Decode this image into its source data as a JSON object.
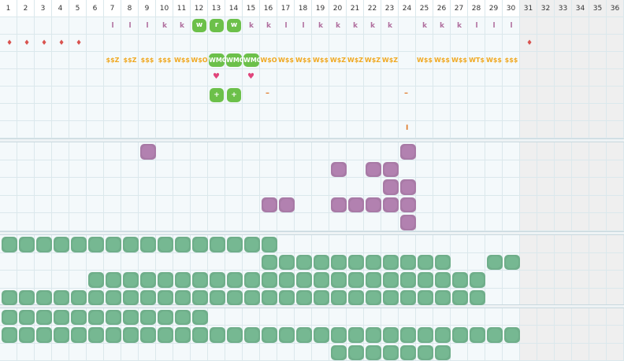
{
  "days": [
    "1",
    "2",
    "3",
    "4",
    "5",
    "6",
    "7",
    "8",
    "9",
    "10",
    "11",
    "12",
    "13",
    "14",
    "15",
    "16",
    "17",
    "18",
    "19",
    "20",
    "21",
    "22",
    "23",
    "24",
    "25",
    "26",
    "27",
    "28",
    "29",
    "30",
    "31",
    "32",
    "33",
    "34",
    "35",
    "36"
  ],
  "colors": {
    "grid_line": "#dbe8ec",
    "row_bg": "#f4f9fb",
    "future_shade": "#efefef",
    "purple_blob": "#a87aa6",
    "green_blob": "#6fae8a",
    "green_badge": "#6cc04a",
    "k_text": "#b06f9e",
    "dollar_text": "#f0a820",
    "drop": "#d9534f",
    "heart": "#e0457b",
    "dash": "#e07a2a"
  },
  "row1_letters": [
    {
      "day": 7,
      "text": "l"
    },
    {
      "day": 8,
      "text": "l"
    },
    {
      "day": 9,
      "text": "l"
    },
    {
      "day": 10,
      "text": "k"
    },
    {
      "day": 11,
      "text": "k"
    },
    {
      "day": 12,
      "text": "w",
      "badge": true
    },
    {
      "day": 13,
      "text": "r",
      "badge": true
    },
    {
      "day": 14,
      "text": "w",
      "badge": true
    },
    {
      "day": 15,
      "text": "k"
    },
    {
      "day": 16,
      "text": "k"
    },
    {
      "day": 17,
      "text": "l"
    },
    {
      "day": 18,
      "text": "l"
    },
    {
      "day": 19,
      "text": "k"
    },
    {
      "day": 20,
      "text": "k"
    },
    {
      "day": 21,
      "text": "k"
    },
    {
      "day": 22,
      "text": "k"
    },
    {
      "day": 23,
      "text": "k"
    },
    {
      "day": 25,
      "text": "k"
    },
    {
      "day": 26,
      "text": "k"
    },
    {
      "day": 27,
      "text": "k"
    },
    {
      "day": 28,
      "text": "l"
    },
    {
      "day": 29,
      "text": "l"
    },
    {
      "day": 30,
      "text": "l"
    }
  ],
  "row2_drops": [
    1,
    2,
    3,
    4,
    5,
    31
  ],
  "row3_codes": [
    {
      "day": 7,
      "text": "$$Z"
    },
    {
      "day": 8,
      "text": "$$Z"
    },
    {
      "day": 9,
      "text": "$$$"
    },
    {
      "day": 10,
      "text": "$$$"
    },
    {
      "day": 11,
      "text": "W$$"
    },
    {
      "day": 12,
      "text": "W$O"
    },
    {
      "day": 13,
      "text": "WMO",
      "badge": true
    },
    {
      "day": 14,
      "text": "WMO",
      "badge": true
    },
    {
      "day": 15,
      "text": "WMO",
      "badge": true
    },
    {
      "day": 16,
      "text": "W$O"
    },
    {
      "day": 17,
      "text": "W$$"
    },
    {
      "day": 18,
      "text": "W$$"
    },
    {
      "day": 19,
      "text": "W$$"
    },
    {
      "day": 20,
      "text": "W$Z"
    },
    {
      "day": 21,
      "text": "W$Z"
    },
    {
      "day": 22,
      "text": "W$Z"
    },
    {
      "day": 23,
      "text": "W$Z"
    },
    {
      "day": 25,
      "text": "W$$"
    },
    {
      "day": 26,
      "text": "W$$"
    },
    {
      "day": 27,
      "text": "W$$"
    },
    {
      "day": 28,
      "text": "WT$"
    },
    {
      "day": 29,
      "text": "W$$"
    },
    {
      "day": 30,
      "text": "$$$"
    }
  ],
  "row4_hearts": [
    13,
    15
  ],
  "row5_plus": [
    13,
    14
  ],
  "row5_dash": [
    16,
    24
  ],
  "row7_tick": [
    24
  ],
  "plus_text": "+",
  "dash_text": "–",
  "tick_text": "I",
  "heart_text": "♥",
  "drop_text": "♦",
  "purple_rows": [
    [
      9,
      24
    ],
    [
      20,
      22,
      23
    ],
    [
      23,
      24
    ],
    [
      16,
      17,
      20,
      21,
      22,
      23,
      24
    ],
    [
      24
    ]
  ],
  "green_band1_rows": [
    [
      1,
      2,
      3,
      4,
      5,
      6,
      7,
      8,
      9,
      10,
      11,
      12,
      13,
      14,
      15,
      16
    ],
    [
      16,
      17,
      18,
      19,
      20,
      21,
      22,
      23,
      24,
      25,
      26,
      29,
      30
    ],
    [
      6,
      7,
      8,
      9,
      10,
      11,
      12,
      13,
      14,
      15,
      16,
      17,
      18,
      19,
      20,
      21,
      22,
      23,
      24,
      25,
      26,
      27,
      28
    ],
    [
      1,
      2,
      3,
      4,
      5,
      6,
      7,
      8,
      9,
      10,
      11,
      12,
      13,
      14,
      15,
      16,
      17,
      18,
      19,
      20,
      21,
      22,
      23,
      24,
      25,
      26,
      27,
      28
    ]
  ],
  "green_band2_rows": [
    [
      1,
      2,
      3,
      4,
      5,
      6,
      7,
      8,
      9,
      10,
      11,
      12
    ],
    [
      1,
      2,
      3,
      4,
      5,
      6,
      7,
      8,
      9,
      10,
      11,
      12,
      13,
      14,
      15,
      16,
      17,
      18,
      19,
      20,
      21,
      22,
      23,
      24,
      25,
      26,
      27,
      28,
      29,
      30
    ],
    [
      20,
      21,
      22,
      23,
      24,
      25,
      26
    ]
  ]
}
